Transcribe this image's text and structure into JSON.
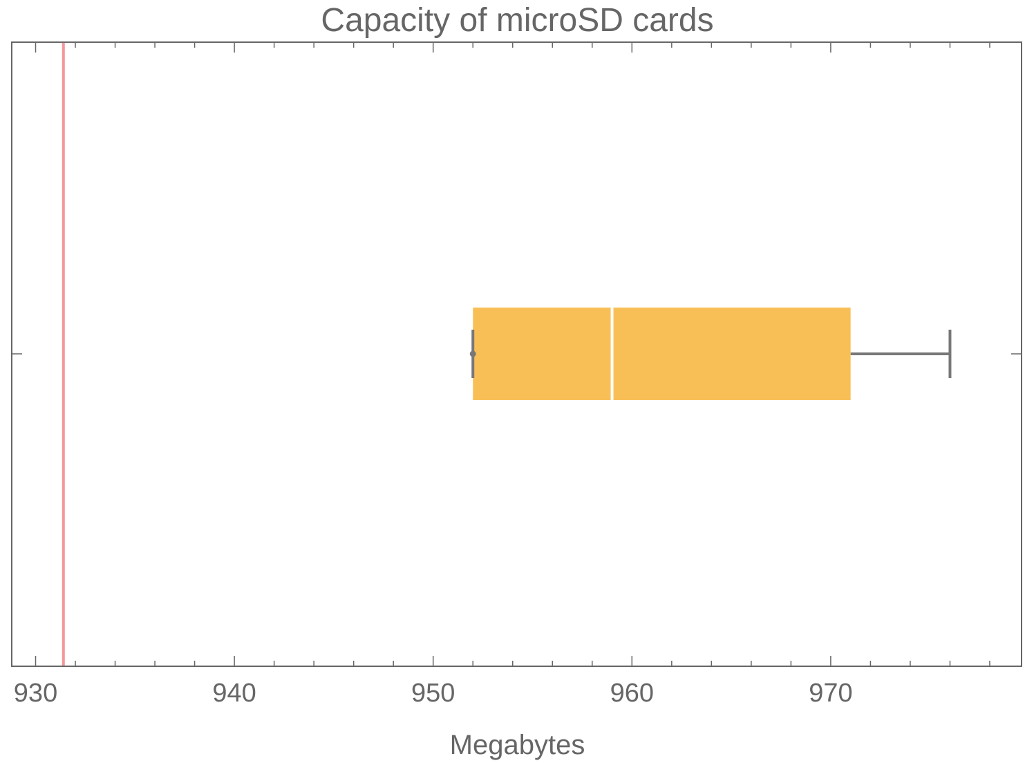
{
  "chart_data": {
    "type": "box",
    "title": "Capacity of microSD cards",
    "xlabel": "Megabytes",
    "ylabel": "",
    "xlim": [
      928.8,
      979.6
    ],
    "x_ticks_major": [
      930,
      940,
      950,
      960,
      970
    ],
    "x_ticks_major_labels": [
      "930",
      "940",
      "950",
      "960",
      "970"
    ],
    "x_ticks_minor_step": 2,
    "grid": false,
    "box": {
      "min": 952,
      "q1": 952,
      "median": 959,
      "q3": 971,
      "max": 976
    },
    "reference_line": {
      "x": 931.4
    },
    "colors": {
      "box_fill": "#f9bf57",
      "median_line": "#ffffff",
      "whisker": "#777777",
      "reference_line": "#f4969c",
      "frame": "#666666",
      "text": "#666666"
    }
  }
}
